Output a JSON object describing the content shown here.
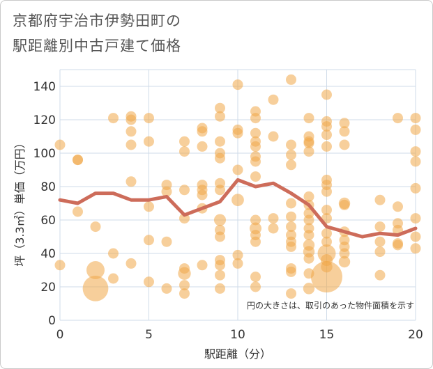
{
  "title_line1": "京都府宇治市伊勢田町の",
  "title_line2": "駅距離別中古戸建て価格",
  "colors": {
    "bubble": "#f0a848",
    "line": "#cd6c5a",
    "grid": "#cfdbe8",
    "plot_bg": "#ffffff"
  },
  "chart_data": {
    "type": "scatter",
    "title": "京都府宇治市伊勢田町の駅距離別中古戸建て価格",
    "xlabel": "駅距離（分）",
    "ylabel": "坪（3.3㎡）単価（万円）",
    "xlim": [
      0,
      20
    ],
    "ylim": [
      0,
      150
    ],
    "xticks": [
      "0",
      "5",
      "10",
      "15",
      "20"
    ],
    "yticks": [
      "0",
      "20",
      "40",
      "60",
      "80",
      "100",
      "120",
      "140"
    ],
    "grid": true,
    "annotation": "円の大きさは、取引のあった物件面積を示す",
    "average_line": {
      "x": [
        0,
        1,
        2,
        3,
        4,
        5,
        6,
        7,
        8,
        9,
        10,
        11,
        12,
        13,
        14,
        15,
        16,
        17,
        18,
        19,
        20
      ],
      "y": [
        72,
        70,
        76,
        76,
        72,
        72,
        74,
        63,
        67,
        71,
        84,
        80,
        82,
        76,
        69,
        56,
        53,
        50,
        52,
        51,
        55
      ]
    },
    "points": [
      {
        "x": 0,
        "y": 105,
        "s": 1
      },
      {
        "x": 0,
        "y": 33,
        "s": 1
      },
      {
        "x": 1,
        "y": 96,
        "s": 1
      },
      {
        "x": 1,
        "y": 96,
        "s": 1
      },
      {
        "x": 1,
        "y": 65,
        "s": 1
      },
      {
        "x": 2,
        "y": 56,
        "s": 1
      },
      {
        "x": 2,
        "y": 30,
        "s": 3
      },
      {
        "x": 2,
        "y": 19,
        "s": 6
      },
      {
        "x": 3,
        "y": 121,
        "s": 1
      },
      {
        "x": 3,
        "y": 40,
        "s": 1
      },
      {
        "x": 3,
        "y": 25,
        "s": 1
      },
      {
        "x": 4,
        "y": 122,
        "s": 1
      },
      {
        "x": 4,
        "y": 120,
        "s": 1
      },
      {
        "x": 4,
        "y": 113,
        "s": 1
      },
      {
        "x": 4,
        "y": 105,
        "s": 1
      },
      {
        "x": 4,
        "y": 83,
        "s": 1
      },
      {
        "x": 4,
        "y": 34,
        "s": 1
      },
      {
        "x": 5,
        "y": 121,
        "s": 1
      },
      {
        "x": 5,
        "y": 107,
        "s": 1
      },
      {
        "x": 5,
        "y": 68,
        "s": 1
      },
      {
        "x": 5,
        "y": 48,
        "s": 1
      },
      {
        "x": 5,
        "y": 23,
        "s": 1
      },
      {
        "x": 6,
        "y": 81,
        "s": 1
      },
      {
        "x": 6,
        "y": 77,
        "s": 1
      },
      {
        "x": 6,
        "y": 47,
        "s": 1
      },
      {
        "x": 6,
        "y": 19,
        "s": 1
      },
      {
        "x": 7,
        "y": 107,
        "s": 1
      },
      {
        "x": 7,
        "y": 101,
        "s": 1
      },
      {
        "x": 7,
        "y": 78,
        "s": 1
      },
      {
        "x": 7,
        "y": 61,
        "s": 1
      },
      {
        "x": 7,
        "y": 31,
        "s": 1
      },
      {
        "x": 7,
        "y": 28,
        "s": 1.5
      },
      {
        "x": 7,
        "y": 21,
        "s": 1
      },
      {
        "x": 7,
        "y": 16,
        "s": 1
      },
      {
        "x": 8,
        "y": 115,
        "s": 1
      },
      {
        "x": 8,
        "y": 113,
        "s": 1
      },
      {
        "x": 8,
        "y": 104,
        "s": 1
      },
      {
        "x": 8,
        "y": 81,
        "s": 1
      },
      {
        "x": 8,
        "y": 78,
        "s": 1
      },
      {
        "x": 8,
        "y": 75,
        "s": 1
      },
      {
        "x": 8,
        "y": 67,
        "s": 1
      },
      {
        "x": 8,
        "y": 33,
        "s": 1
      },
      {
        "x": 9,
        "y": 127,
        "s": 1
      },
      {
        "x": 9,
        "y": 122,
        "s": 1
      },
      {
        "x": 9,
        "y": 107,
        "s": 1
      },
      {
        "x": 9,
        "y": 100,
        "s": 1
      },
      {
        "x": 9,
        "y": 97,
        "s": 1
      },
      {
        "x": 9,
        "y": 82,
        "s": 1
      },
      {
        "x": 9,
        "y": 78,
        "s": 1
      },
      {
        "x": 9,
        "y": 60,
        "s": 1.3
      },
      {
        "x": 9,
        "y": 54,
        "s": 1
      },
      {
        "x": 9,
        "y": 50,
        "s": 1
      },
      {
        "x": 9,
        "y": 36,
        "s": 1
      },
      {
        "x": 9,
        "y": 33,
        "s": 1
      },
      {
        "x": 9,
        "y": 27,
        "s": 1
      },
      {
        "x": 9,
        "y": 19,
        "s": 1
      },
      {
        "x": 10,
        "y": 141,
        "s": 1
      },
      {
        "x": 10,
        "y": 114,
        "s": 1
      },
      {
        "x": 10,
        "y": 112,
        "s": 1
      },
      {
        "x": 10,
        "y": 90,
        "s": 1
      },
      {
        "x": 10,
        "y": 72,
        "s": 1.4
      },
      {
        "x": 10,
        "y": 39,
        "s": 1
      },
      {
        "x": 10,
        "y": 34,
        "s": 1
      },
      {
        "x": 11,
        "y": 125,
        "s": 1
      },
      {
        "x": 11,
        "y": 121,
        "s": 1
      },
      {
        "x": 11,
        "y": 112,
        "s": 1
      },
      {
        "x": 11,
        "y": 107,
        "s": 1
      },
      {
        "x": 11,
        "y": 104,
        "s": 1
      },
      {
        "x": 11,
        "y": 98,
        "s": 1
      },
      {
        "x": 11,
        "y": 95,
        "s": 1
      },
      {
        "x": 11,
        "y": 86,
        "s": 1
      },
      {
        "x": 11,
        "y": 60,
        "s": 1
      },
      {
        "x": 11,
        "y": 55,
        "s": 1.3
      },
      {
        "x": 11,
        "y": 51,
        "s": 1
      },
      {
        "x": 11,
        "y": 47,
        "s": 1
      },
      {
        "x": 11,
        "y": 26,
        "s": 1
      },
      {
        "x": 11,
        "y": 20,
        "s": 1
      },
      {
        "x": 12,
        "y": 132,
        "s": 1
      },
      {
        "x": 12,
        "y": 110,
        "s": 1
      },
      {
        "x": 12,
        "y": 61,
        "s": 1
      },
      {
        "x": 12,
        "y": 55,
        "s": 1
      },
      {
        "x": 13,
        "y": 144,
        "s": 1
      },
      {
        "x": 13,
        "y": 105,
        "s": 1
      },
      {
        "x": 13,
        "y": 99,
        "s": 1
      },
      {
        "x": 13,
        "y": 93,
        "s": 1
      },
      {
        "x": 13,
        "y": 70,
        "s": 1
      },
      {
        "x": 13,
        "y": 62,
        "s": 1
      },
      {
        "x": 13,
        "y": 56,
        "s": 1
      },
      {
        "x": 13,
        "y": 51,
        "s": 1
      },
      {
        "x": 13,
        "y": 47,
        "s": 1
      },
      {
        "x": 13,
        "y": 44,
        "s": 1
      },
      {
        "x": 13,
        "y": 31,
        "s": 1
      },
      {
        "x": 13,
        "y": 29,
        "s": 1
      },
      {
        "x": 13,
        "y": 16,
        "s": 1
      },
      {
        "x": 14,
        "y": 121,
        "s": 1
      },
      {
        "x": 14,
        "y": 110,
        "s": 1
      },
      {
        "x": 14,
        "y": 107,
        "s": 1
      },
      {
        "x": 14,
        "y": 106,
        "s": 1
      },
      {
        "x": 14,
        "y": 101,
        "s": 1
      },
      {
        "x": 14,
        "y": 74,
        "s": 1
      },
      {
        "x": 14,
        "y": 69,
        "s": 1
      },
      {
        "x": 14,
        "y": 64,
        "s": 1
      },
      {
        "x": 14,
        "y": 60,
        "s": 1
      },
      {
        "x": 14,
        "y": 55,
        "s": 1
      },
      {
        "x": 14,
        "y": 51,
        "s": 1
      },
      {
        "x": 14,
        "y": 45,
        "s": 1.2
      },
      {
        "x": 14,
        "y": 41,
        "s": 1.2
      },
      {
        "x": 14,
        "y": 37,
        "s": 1
      },
      {
        "x": 14,
        "y": 28,
        "s": 1
      },
      {
        "x": 14,
        "y": 19,
        "s": 1.2
      },
      {
        "x": 15,
        "y": 135,
        "s": 1
      },
      {
        "x": 15,
        "y": 119,
        "s": 1
      },
      {
        "x": 15,
        "y": 116,
        "s": 1
      },
      {
        "x": 15,
        "y": 111,
        "s": 1
      },
      {
        "x": 15,
        "y": 104,
        "s": 1
      },
      {
        "x": 15,
        "y": 84,
        "s": 1
      },
      {
        "x": 15,
        "y": 81,
        "s": 1
      },
      {
        "x": 15,
        "y": 77,
        "s": 1
      },
      {
        "x": 15,
        "y": 66,
        "s": 1
      },
      {
        "x": 15,
        "y": 61,
        "s": 1
      },
      {
        "x": 15,
        "y": 52,
        "s": 1
      },
      {
        "x": 15,
        "y": 47,
        "s": 1
      },
      {
        "x": 15,
        "y": 40,
        "s": 3
      },
      {
        "x": 15,
        "y": 36,
        "s": 1.3
      },
      {
        "x": 15,
        "y": 32,
        "s": 1.2
      },
      {
        "x": 15,
        "y": 26,
        "s": 9
      },
      {
        "x": 16,
        "y": 118,
        "s": 1
      },
      {
        "x": 16,
        "y": 113,
        "s": 1
      },
      {
        "x": 16,
        "y": 105,
        "s": 1
      },
      {
        "x": 16,
        "y": 70,
        "s": 1.2
      },
      {
        "x": 16,
        "y": 69,
        "s": 1
      },
      {
        "x": 16,
        "y": 53,
        "s": 1
      },
      {
        "x": 16,
        "y": 48,
        "s": 1
      },
      {
        "x": 16,
        "y": 44,
        "s": 1
      },
      {
        "x": 16,
        "y": 40,
        "s": 1
      },
      {
        "x": 16,
        "y": 35,
        "s": 1.2
      },
      {
        "x": 18,
        "y": 72,
        "s": 1
      },
      {
        "x": 18,
        "y": 56,
        "s": 1
      },
      {
        "x": 18,
        "y": 47,
        "s": 1
      },
      {
        "x": 18,
        "y": 41,
        "s": 1
      },
      {
        "x": 18,
        "y": 27,
        "s": 1
      },
      {
        "x": 19,
        "y": 121,
        "s": 1
      },
      {
        "x": 19,
        "y": 68,
        "s": 1
      },
      {
        "x": 19,
        "y": 58,
        "s": 1
      },
      {
        "x": 19,
        "y": 54,
        "s": 1
      },
      {
        "x": 19,
        "y": 46,
        "s": 1
      },
      {
        "x": 19,
        "y": 45,
        "s": 1
      },
      {
        "x": 20,
        "y": 121,
        "s": 1
      },
      {
        "x": 20,
        "y": 114,
        "s": 1
      },
      {
        "x": 20,
        "y": 101,
        "s": 1
      },
      {
        "x": 20,
        "y": 95,
        "s": 1
      },
      {
        "x": 20,
        "y": 79,
        "s": 1
      },
      {
        "x": 20,
        "y": 61,
        "s": 1
      },
      {
        "x": 20,
        "y": 50,
        "s": 1
      },
      {
        "x": 20,
        "y": 43,
        "s": 1
      }
    ]
  }
}
